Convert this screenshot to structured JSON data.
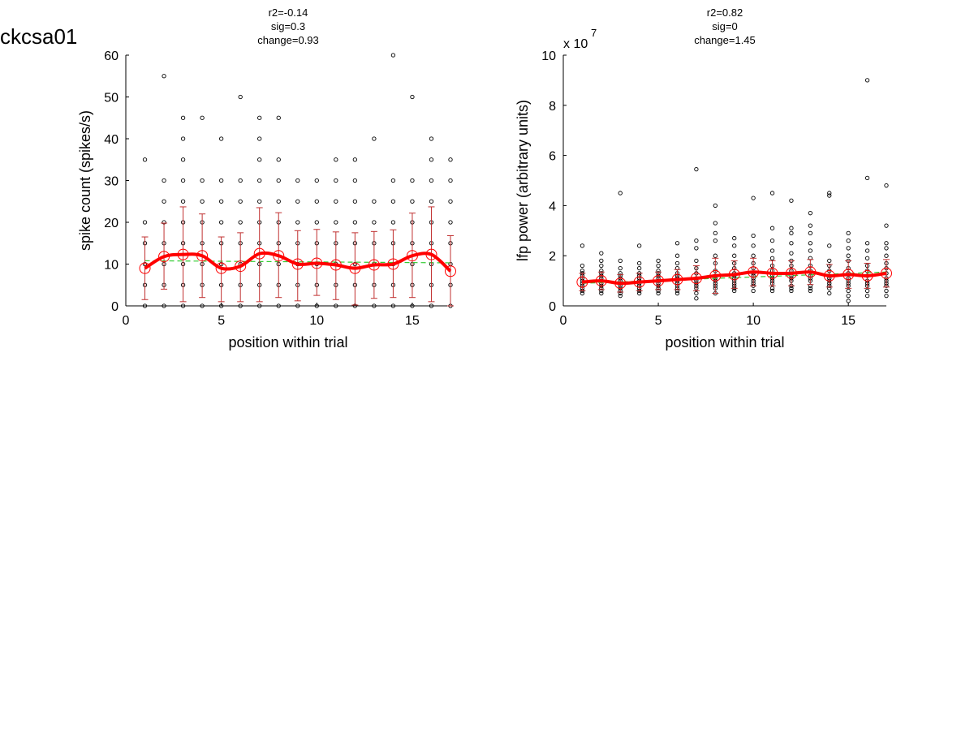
{
  "figure": {
    "title": "ckcsa01"
  },
  "chart_data": [
    {
      "type": "scatter",
      "annotations": [
        "r2=-0.14",
        "sig=0.3",
        "change=0.93"
      ],
      "xlabel": "position within trial",
      "ylabel": "spike count (spikes/s)",
      "xlim": [
        0,
        17
      ],
      "ylim": [
        0,
        60
      ],
      "xticks": [
        0,
        5,
        10,
        15
      ],
      "yticks": [
        0,
        10,
        20,
        30,
        40,
        50,
        60
      ],
      "exponent_label": "",
      "colors": {
        "points": "#000000",
        "mean": "#ff0000",
        "errorbar": "#c03030",
        "fit": "#33cc33"
      },
      "points": [
        {
          "x": 1,
          "y": [
            0,
            5,
            10,
            15,
            20,
            35
          ]
        },
        {
          "x": 2,
          "y": [
            0,
            5,
            10,
            15,
            20,
            25,
            30,
            55
          ]
        },
        {
          "x": 3,
          "y": [
            0,
            5,
            10,
            15,
            20,
            25,
            30,
            35,
            40,
            45
          ]
        },
        {
          "x": 4,
          "y": [
            0,
            5,
            10,
            15,
            20,
            25,
            30,
            45
          ]
        },
        {
          "x": 5,
          "y": [
            0,
            5,
            10,
            15,
            20,
            25,
            30,
            40
          ]
        },
        {
          "x": 6,
          "y": [
            0,
            5,
            10,
            15,
            20,
            25,
            30,
            50
          ]
        },
        {
          "x": 7,
          "y": [
            0,
            5,
            10,
            15,
            20,
            25,
            30,
            35,
            40,
            45
          ]
        },
        {
          "x": 8,
          "y": [
            0,
            5,
            10,
            15,
            20,
            25,
            30,
            35,
            45
          ]
        },
        {
          "x": 9,
          "y": [
            0,
            5,
            10,
            15,
            20,
            25,
            30
          ]
        },
        {
          "x": 10,
          "y": [
            0,
            5,
            10,
            15,
            20,
            25,
            30
          ]
        },
        {
          "x": 11,
          "y": [
            0,
            5,
            10,
            15,
            20,
            25,
            30,
            35
          ]
        },
        {
          "x": 12,
          "y": [
            0,
            5,
            10,
            15,
            20,
            25,
            30,
            35
          ]
        },
        {
          "x": 13,
          "y": [
            0,
            5,
            10,
            15,
            20,
            25,
            40
          ]
        },
        {
          "x": 14,
          "y": [
            0,
            5,
            10,
            15,
            20,
            25,
            30,
            60
          ]
        },
        {
          "x": 15,
          "y": [
            0,
            5,
            10,
            15,
            20,
            25,
            30,
            50
          ]
        },
        {
          "x": 16,
          "y": [
            0,
            5,
            10,
            15,
            20,
            25,
            30,
            35,
            40
          ]
        },
        {
          "x": 17,
          "y": [
            0,
            5,
            10,
            15,
            20,
            25,
            30,
            35
          ]
        }
      ],
      "mean_x": [
        1,
        2,
        3,
        4,
        5,
        6,
        7,
        8,
        9,
        10,
        11,
        12,
        13,
        14,
        15,
        16,
        17
      ],
      "mean_y": [
        9,
        11.8,
        12.3,
        12,
        9,
        9.5,
        12.5,
        12,
        10,
        10.2,
        9.8,
        9,
        9.8,
        10,
        12,
        12.3,
        8.3
      ],
      "error_low": [
        1.5,
        4,
        1,
        2,
        1,
        1,
        1,
        2,
        1.2,
        2.5,
        1.5,
        0.2,
        1.8,
        2,
        2,
        1,
        0
      ],
      "error_high": [
        16.5,
        19.8,
        23.7,
        22,
        16.5,
        17.5,
        23.5,
        22.3,
        18,
        18.3,
        17.7,
        17.5,
        17.8,
        18.2,
        22.2,
        23.7,
        16.8
      ],
      "fit_y": [
        10.8,
        10.3
      ]
    },
    {
      "type": "scatter",
      "annotations": [
        "r2=0.82",
        "sig=0",
        "change=1.45"
      ],
      "xlabel": "position within trial",
      "ylabel": "lfp power (arbitrary units)",
      "xlim": [
        0,
        17
      ],
      "ylim": [
        0,
        10
      ],
      "xticks": [
        0,
        5,
        10,
        15
      ],
      "yticks": [
        0,
        2,
        4,
        6,
        8,
        10
      ],
      "exponent_label": "x 10",
      "exponent": "7",
      "colors": {
        "points": "#000000",
        "mean": "#ff0000",
        "errorbar": "#c03030",
        "fit": "#33cc33"
      },
      "points": [
        {
          "x": 1,
          "y": [
            0.5,
            0.6,
            0.7,
            0.8,
            0.9,
            1.0,
            1.1,
            1.2,
            1.3,
            1.4,
            1.6,
            2.4
          ]
        },
        {
          "x": 2,
          "y": [
            0.5,
            0.6,
            0.7,
            0.8,
            0.9,
            1.0,
            1.1,
            1.2,
            1.3,
            1.4,
            1.6,
            1.8,
            2.1
          ]
        },
        {
          "x": 3,
          "y": [
            0.4,
            0.5,
            0.6,
            0.7,
            0.8,
            0.9,
            1.0,
            1.1,
            1.2,
            1.3,
            1.5,
            1.8,
            4.5
          ]
        },
        {
          "x": 4,
          "y": [
            0.5,
            0.6,
            0.7,
            0.8,
            0.9,
            1.0,
            1.1,
            1.2,
            1.3,
            1.5,
            1.7,
            2.4
          ]
        },
        {
          "x": 5,
          "y": [
            0.5,
            0.6,
            0.7,
            0.8,
            0.9,
            1.0,
            1.1,
            1.2,
            1.3,
            1.4,
            1.6,
            1.8
          ]
        },
        {
          "x": 6,
          "y": [
            0.5,
            0.6,
            0.7,
            0.8,
            0.9,
            1.0,
            1.1,
            1.2,
            1.3,
            1.5,
            1.7,
            2.0,
            2.5
          ]
        },
        {
          "x": 7,
          "y": [
            0.3,
            0.5,
            0.7,
            0.8,
            0.9,
            1.0,
            1.1,
            1.3,
            1.5,
            1.8,
            2.3,
            2.6,
            5.45
          ]
        },
        {
          "x": 8,
          "y": [
            0.5,
            0.7,
            0.8,
            0.9,
            1.0,
            1.1,
            1.2,
            1.4,
            1.7,
            2.0,
            2.6,
            2.9,
            3.3,
            4.0
          ]
        },
        {
          "x": 9,
          "y": [
            0.6,
            0.7,
            0.8,
            0.9,
            1.0,
            1.1,
            1.2,
            1.3,
            1.5,
            1.7,
            2.0,
            2.4,
            2.7
          ]
        },
        {
          "x": 10,
          "y": [
            0.6,
            0.8,
            0.9,
            1.0,
            1.1,
            1.2,
            1.3,
            1.5,
            1.7,
            2.0,
            2.4,
            2.8,
            4.3
          ]
        },
        {
          "x": 11,
          "y": [
            0.6,
            0.7,
            0.9,
            1.0,
            1.1,
            1.2,
            1.4,
            1.6,
            1.9,
            2.2,
            2.6,
            3.1,
            4.5
          ]
        },
        {
          "x": 12,
          "y": [
            0.6,
            0.7,
            0.8,
            1.0,
            1.1,
            1.2,
            1.4,
            1.6,
            1.8,
            2.1,
            2.5,
            2.9,
            3.1,
            4.2
          ]
        },
        {
          "x": 13,
          "y": [
            0.6,
            0.7,
            0.8,
            1.0,
            1.1,
            1.2,
            1.4,
            1.6,
            1.9,
            2.2,
            2.5,
            2.9,
            3.2,
            3.7
          ]
        },
        {
          "x": 14,
          "y": [
            0.5,
            0.7,
            0.8,
            0.9,
            1.0,
            1.1,
            1.2,
            1.4,
            1.6,
            1.8,
            2.4,
            4.4,
            4.5
          ]
        },
        {
          "x": 15,
          "y": [
            0.2,
            0.4,
            0.6,
            0.8,
            0.9,
            1.0,
            1.1,
            1.3,
            1.5,
            1.8,
            2.0,
            2.3,
            2.6,
            2.9
          ]
        },
        {
          "x": 16,
          "y": [
            0.4,
            0.6,
            0.8,
            0.9,
            1.0,
            1.2,
            1.4,
            1.6,
            1.9,
            2.2,
            2.5,
            5.1,
            9.0
          ]
        },
        {
          "x": 17,
          "y": [
            0.4,
            0.6,
            0.8,
            0.9,
            1.0,
            1.1,
            1.3,
            1.5,
            1.7,
            2.0,
            2.3,
            2.5,
            3.2,
            4.8
          ]
        }
      ],
      "mean_x": [
        1,
        2,
        3,
        4,
        5,
        6,
        7,
        8,
        9,
        10,
        11,
        12,
        13,
        14,
        15,
        16,
        17
      ],
      "mean_y": [
        0.95,
        1.0,
        0.9,
        0.95,
        1.0,
        1.05,
        1.1,
        1.2,
        1.25,
        1.35,
        1.3,
        1.3,
        1.35,
        1.2,
        1.25,
        1.2,
        1.3
      ],
      "error_low": [
        0.6,
        0.65,
        0.55,
        0.6,
        0.65,
        0.65,
        0.6,
        0.5,
        0.7,
        0.8,
        0.8,
        0.8,
        0.85,
        0.75,
        0.7,
        0.7,
        0.75
      ],
      "error_high": [
        1.3,
        1.35,
        1.25,
        1.3,
        1.35,
        1.45,
        1.6,
        1.9,
        1.8,
        1.9,
        1.8,
        1.8,
        1.85,
        1.65,
        1.8,
        1.7,
        1.85
      ],
      "fit_y": [
        0.9,
        1.35
      ]
    }
  ]
}
